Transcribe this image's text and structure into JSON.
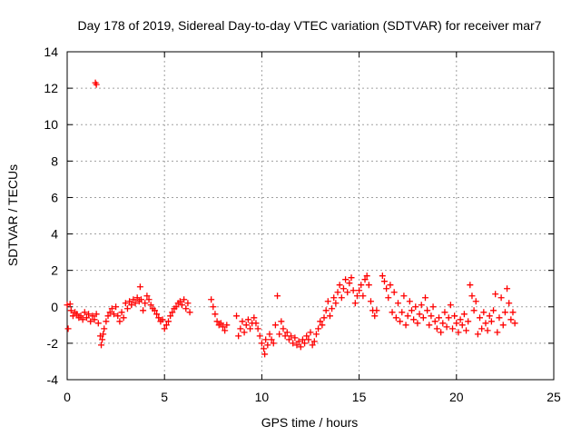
{
  "chart_data": {
    "type": "scatter",
    "title": "Day 178 of 2019, Sidereal Day-to-day VTEC variation (SDTVAR) for receiver mar7",
    "xlabel": "GPS time / hours",
    "ylabel": "SDTVAR / TECUs",
    "xlim": [
      0,
      25
    ],
    "ylim": [
      -4,
      14
    ],
    "xticks": [
      0,
      5,
      10,
      15,
      20,
      25
    ],
    "yticks": [
      -4,
      -2,
      0,
      2,
      4,
      6,
      8,
      10,
      12,
      14
    ],
    "xtick_labels": [
      "0",
      "5",
      "10",
      "15",
      "20",
      "25"
    ],
    "ytick_labels": [
      "-4",
      "-2",
      "0",
      "2",
      "4",
      "6",
      "8",
      "10",
      "12",
      "14"
    ],
    "grid": true,
    "marker": "+",
    "color": "#ff0000",
    "series": [
      {
        "name": "SDTVAR",
        "points": [
          [
            0.0,
            0.1
          ],
          [
            0.05,
            -1.2
          ],
          [
            0.15,
            0.15
          ],
          [
            0.2,
            -0.2
          ],
          [
            0.3,
            -0.5
          ],
          [
            0.4,
            -0.3
          ],
          [
            0.5,
            -0.4
          ],
          [
            0.6,
            -0.6
          ],
          [
            0.7,
            -0.5
          ],
          [
            0.8,
            -0.7
          ],
          [
            0.9,
            -0.3
          ],
          [
            1.0,
            -0.6
          ],
          [
            1.1,
            -0.4
          ],
          [
            1.2,
            -0.8
          ],
          [
            1.3,
            -0.5
          ],
          [
            1.4,
            -0.7
          ],
          [
            1.5,
            -0.4
          ],
          [
            1.6,
            -0.9
          ],
          [
            1.45,
            12.3
          ],
          [
            1.5,
            12.2
          ],
          [
            1.7,
            -1.6
          ],
          [
            1.75,
            -2.1
          ],
          [
            1.8,
            -1.8
          ],
          [
            1.85,
            -1.5
          ],
          [
            1.9,
            -1.2
          ],
          [
            2.0,
            -0.8
          ],
          [
            2.1,
            -0.5
          ],
          [
            2.2,
            -0.3
          ],
          [
            2.3,
            -0.1
          ],
          [
            2.4,
            -0.4
          ],
          [
            2.5,
            0.0
          ],
          [
            2.6,
            -0.5
          ],
          [
            2.7,
            -0.8
          ],
          [
            2.8,
            -0.3
          ],
          [
            2.9,
            -0.6
          ],
          [
            3.0,
            0.2
          ],
          [
            3.1,
            -0.1
          ],
          [
            3.2,
            0.3
          ],
          [
            3.3,
            0.1
          ],
          [
            3.4,
            0.4
          ],
          [
            3.5,
            0.2
          ],
          [
            3.6,
            0.5
          ],
          [
            3.7,
            0.3
          ],
          [
            3.75,
            1.1
          ],
          [
            3.8,
            0.4
          ],
          [
            3.9,
            -0.2
          ],
          [
            4.0,
            0.2
          ],
          [
            4.1,
            0.6
          ],
          [
            4.2,
            0.4
          ],
          [
            4.3,
            0.1
          ],
          [
            4.4,
            -0.1
          ],
          [
            4.5,
            -0.2
          ],
          [
            4.6,
            -0.4
          ],
          [
            4.7,
            -0.6
          ],
          [
            4.8,
            -0.8
          ],
          [
            4.9,
            -0.7
          ],
          [
            5.0,
            -1.2
          ],
          [
            5.1,
            -1.0
          ],
          [
            5.2,
            -0.8
          ],
          [
            5.3,
            -0.5
          ],
          [
            5.4,
            -0.3
          ],
          [
            5.5,
            -0.1
          ],
          [
            5.6,
            0.0
          ],
          [
            5.7,
            0.2
          ],
          [
            5.8,
            0.3
          ],
          [
            5.9,
            0.1
          ],
          [
            6.0,
            0.4
          ],
          [
            6.1,
            -0.1
          ],
          [
            6.2,
            0.2
          ],
          [
            6.3,
            -0.3
          ],
          [
            7.4,
            0.4
          ],
          [
            7.5,
            0.0
          ],
          [
            7.6,
            -0.4
          ],
          [
            7.7,
            -0.8
          ],
          [
            7.8,
            -1.0
          ],
          [
            7.9,
            -0.9
          ],
          [
            8.0,
            -1.1
          ],
          [
            8.1,
            -1.3
          ],
          [
            8.2,
            -1.0
          ],
          [
            8.7,
            -0.5
          ],
          [
            8.8,
            -1.6
          ],
          [
            8.9,
            -1.2
          ],
          [
            9.0,
            -0.8
          ],
          [
            9.1,
            -1.4
          ],
          [
            9.2,
            -1.0
          ],
          [
            9.3,
            -0.7
          ],
          [
            9.4,
            -1.2
          ],
          [
            9.5,
            -0.9
          ],
          [
            9.6,
            -0.6
          ],
          [
            9.7,
            -0.9
          ],
          [
            9.8,
            -1.2
          ],
          [
            9.9,
            -1.6
          ],
          [
            10.0,
            -2.0
          ],
          [
            10.1,
            -2.3
          ],
          [
            10.15,
            -2.6
          ],
          [
            10.2,
            -1.8
          ],
          [
            10.3,
            -2.1
          ],
          [
            10.4,
            -1.5
          ],
          [
            10.5,
            -1.8
          ],
          [
            10.6,
            -2.0
          ],
          [
            10.7,
            -1.0
          ],
          [
            10.8,
            0.6
          ],
          [
            10.9,
            -1.5
          ],
          [
            11.0,
            -0.8
          ],
          [
            11.1,
            -1.2
          ],
          [
            11.2,
            -1.6
          ],
          [
            11.3,
            -1.4
          ],
          [
            11.4,
            -1.8
          ],
          [
            11.5,
            -1.6
          ],
          [
            11.6,
            -2.0
          ],
          [
            11.7,
            -1.7
          ],
          [
            11.8,
            -2.1
          ],
          [
            11.9,
            -1.9
          ],
          [
            12.0,
            -2.2
          ],
          [
            12.1,
            -1.8
          ],
          [
            12.2,
            -2.0
          ],
          [
            12.3,
            -1.6
          ],
          [
            12.4,
            -1.8
          ],
          [
            12.5,
            -1.4
          ],
          [
            12.6,
            -2.1
          ],
          [
            12.7,
            -1.9
          ],
          [
            12.8,
            -1.5
          ],
          [
            12.9,
            -1.2
          ],
          [
            13.0,
            -0.8
          ],
          [
            13.1,
            -1.0
          ],
          [
            13.2,
            -0.6
          ],
          [
            13.3,
            -0.2
          ],
          [
            13.4,
            0.3
          ],
          [
            13.5,
            -0.5
          ],
          [
            13.6,
            -0.1
          ],
          [
            13.7,
            0.5
          ],
          [
            13.8,
            0.2
          ],
          [
            13.9,
            0.8
          ],
          [
            14.0,
            1.2
          ],
          [
            14.1,
            0.5
          ],
          [
            14.2,
            1.0
          ],
          [
            14.3,
            1.5
          ],
          [
            14.4,
            0.8
          ],
          [
            14.5,
            1.3
          ],
          [
            14.6,
            1.6
          ],
          [
            14.7,
            0.9
          ],
          [
            14.8,
            0.2
          ],
          [
            14.9,
            0.6
          ],
          [
            15.0,
            0.9
          ],
          [
            15.1,
            1.2
          ],
          [
            15.2,
            0.6
          ],
          [
            15.3,
            1.5
          ],
          [
            15.4,
            1.7
          ],
          [
            15.5,
            1.2
          ],
          [
            15.6,
            0.3
          ],
          [
            15.7,
            -0.2
          ],
          [
            15.8,
            -0.5
          ],
          [
            15.9,
            -0.2
          ],
          [
            16.2,
            1.7
          ],
          [
            16.3,
            1.4
          ],
          [
            16.4,
            1.0
          ],
          [
            16.5,
            0.5
          ],
          [
            16.6,
            1.2
          ],
          [
            16.7,
            -0.3
          ],
          [
            16.8,
            0.8
          ],
          [
            16.9,
            -0.6
          ],
          [
            17.0,
            0.2
          ],
          [
            17.1,
            -0.8
          ],
          [
            17.2,
            -0.3
          ],
          [
            17.3,
            0.6
          ],
          [
            17.4,
            -1.0
          ],
          [
            17.5,
            -0.5
          ],
          [
            17.6,
            0.3
          ],
          [
            17.7,
            -0.2
          ],
          [
            17.8,
            -0.7
          ],
          [
            17.9,
            0.0
          ],
          [
            18.0,
            -0.9
          ],
          [
            18.1,
            -0.4
          ],
          [
            18.2,
            0.1
          ],
          [
            18.3,
            -0.6
          ],
          [
            18.4,
            0.5
          ],
          [
            18.5,
            -0.2
          ],
          [
            18.6,
            -1.0
          ],
          [
            18.7,
            -0.5
          ],
          [
            18.8,
            0.0
          ],
          [
            18.9,
            -0.8
          ],
          [
            19.0,
            -1.2
          ],
          [
            19.1,
            -0.6
          ],
          [
            19.2,
            -1.4
          ],
          [
            19.3,
            -0.9
          ],
          [
            19.4,
            -0.3
          ],
          [
            19.5,
            -1.1
          ],
          [
            19.6,
            -0.6
          ],
          [
            19.7,
            0.1
          ],
          [
            19.8,
            -1.2
          ],
          [
            19.9,
            -0.5
          ],
          [
            20.0,
            -0.9
          ],
          [
            20.1,
            -1.4
          ],
          [
            20.2,
            -0.7
          ],
          [
            20.3,
            -1.0
          ],
          [
            20.4,
            -0.4
          ],
          [
            20.5,
            -1.3
          ],
          [
            20.6,
            -0.8
          ],
          [
            20.7,
            1.2
          ],
          [
            20.8,
            0.6
          ],
          [
            20.9,
            -0.2
          ],
          [
            21.0,
            0.3
          ],
          [
            21.1,
            -1.5
          ],
          [
            21.2,
            -0.6
          ],
          [
            21.3,
            -1.2
          ],
          [
            21.4,
            -0.3
          ],
          [
            21.5,
            -0.9
          ],
          [
            21.6,
            -1.3
          ],
          [
            21.7,
            -0.5
          ],
          [
            21.8,
            -0.8
          ],
          [
            21.9,
            -0.2
          ],
          [
            22.0,
            0.7
          ],
          [
            22.1,
            -1.4
          ],
          [
            22.2,
            -0.6
          ],
          [
            22.3,
            0.5
          ],
          [
            22.4,
            -1.0
          ],
          [
            22.5,
            -0.3
          ],
          [
            22.6,
            1.0
          ],
          [
            22.7,
            0.2
          ],
          [
            22.8,
            -0.7
          ],
          [
            22.9,
            -0.3
          ],
          [
            23.0,
            -0.9
          ]
        ]
      }
    ]
  }
}
